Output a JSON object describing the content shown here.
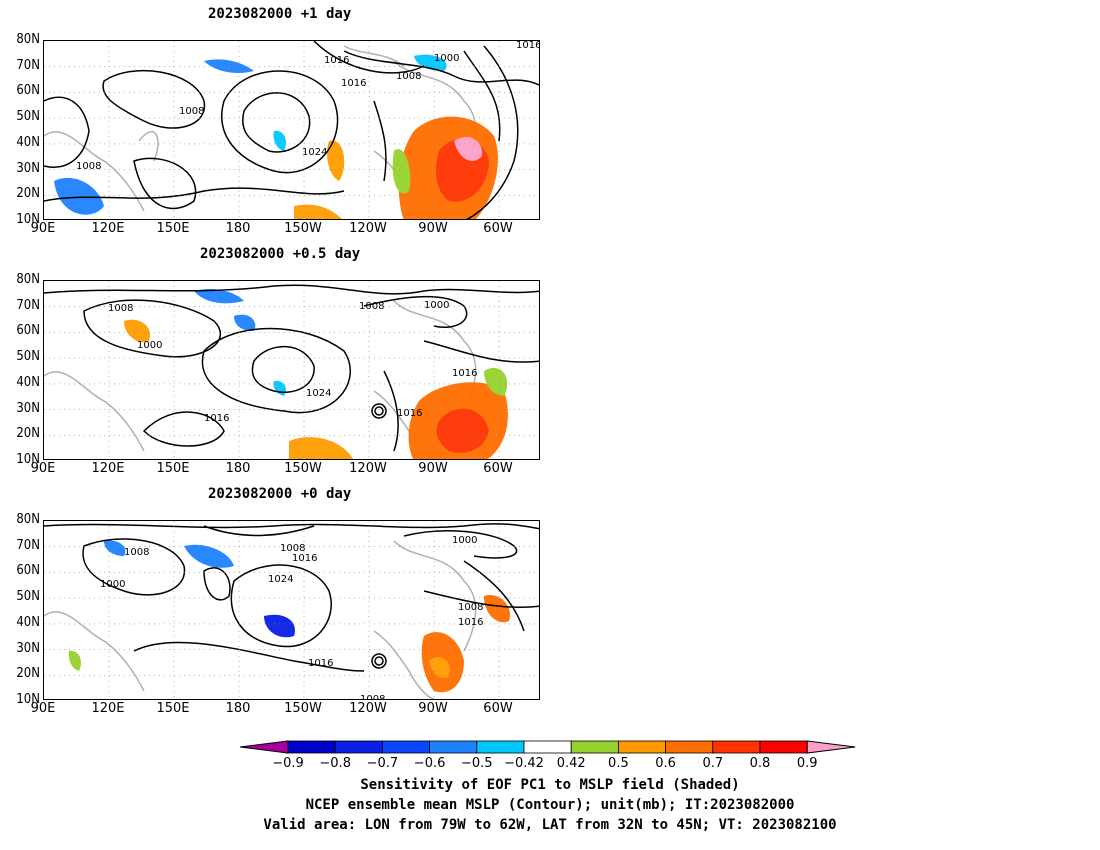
{
  "panels": [
    {
      "title": "2023082000  +1 day"
    },
    {
      "title": "2023082000  +0.5 day"
    },
    {
      "title": "2023082000  +0 day"
    }
  ],
  "axes": {
    "lat_labels": [
      "80N",
      "70N",
      "60N",
      "50N",
      "40N",
      "30N",
      "20N",
      "10N"
    ],
    "lon_labels": [
      "90E",
      "120E",
      "150E",
      "180",
      "150W",
      "120W",
      "90W",
      "60W"
    ]
  },
  "contour_labels": {
    "p1": [
      "1016",
      "1016",
      "1000",
      "1008",
      "1016",
      "1008",
      "1024",
      "1008"
    ],
    "p2": [
      "1008",
      "1008",
      "1000",
      "1000",
      "1024",
      "1016",
      "1016",
      "1016"
    ],
    "p3": [
      "1008",
      "1008",
      "1016",
      "1000",
      "1024",
      "1000",
      "1008",
      "1016",
      "1016",
      "1008"
    ]
  },
  "colorbar": {
    "ticks": [
      "−0.9",
      "−0.8",
      "−0.7",
      "−0.6",
      "−0.5",
      "−0.42",
      "0.42",
      "0.5",
      "0.6",
      "0.7",
      "0.8",
      "0.9"
    ],
    "colors": [
      "#a4009f",
      "#0000c8",
      "#0a1ee6",
      "#0a46ff",
      "#1e82ff",
      "#00c8ff",
      "#ffffff",
      "#96d22d",
      "#ff9b00",
      "#ff6e00",
      "#ff3200",
      "#ff0000",
      "#ffa0c8"
    ]
  },
  "caption": {
    "line1": "Sensitivity of EOF PC1 to MSLP field (Shaded)",
    "line2": "NCEP ensemble mean MSLP (Contour); unit(mb); IT:2023082000",
    "line3": "Valid area: LON from 79W to 62W, LAT from 32N to 45N; VT: 2023082100"
  }
}
